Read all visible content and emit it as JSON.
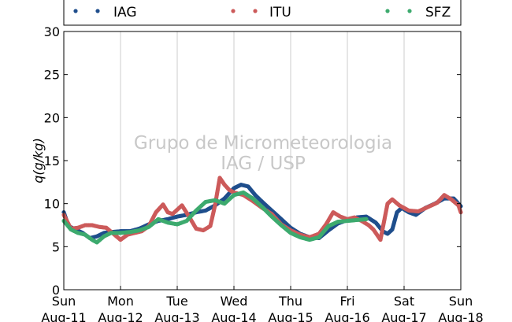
{
  "chart_data": {
    "type": "scatter",
    "ylabel": "q(g/kg)",
    "ylim": [
      0,
      30
    ],
    "yticks": [
      0,
      5,
      10,
      15,
      20,
      25,
      30
    ],
    "xlim": [
      "2013-08-11T00:00",
      "2013-08-18T00:00"
    ],
    "xticks": [
      {
        "day": "Sun",
        "date": "Aug-11"
      },
      {
        "day": "Mon",
        "date": "Aug-12"
      },
      {
        "day": "Tue",
        "date": "Aug-13"
      },
      {
        "day": "Wed",
        "date": "Aug-14"
      },
      {
        "day": "Thu",
        "date": "Aug-15"
      },
      {
        "day": "Fri",
        "date": "Aug-16"
      },
      {
        "day": "Sat",
        "date": "Aug-17"
      },
      {
        "day": "Sun",
        "date": "Aug-18"
      }
    ],
    "grid": "vertical",
    "legend_position": "top",
    "watermark": {
      "line1": "Grupo de Micrometeorologia",
      "line2": "IAG / USP"
    },
    "series": [
      {
        "name": "IAG",
        "color": "#1f4e8c",
        "points": [
          [
            "2013-08-11T00:00",
            9.0
          ],
          [
            "2013-08-11T02:00",
            7.4
          ],
          [
            "2013-08-11T05:00",
            7.0
          ],
          [
            "2013-08-11T08:00",
            6.6
          ],
          [
            "2013-08-11T11:00",
            6.0
          ],
          [
            "2013-08-11T14:00",
            6.2
          ],
          [
            "2013-08-11T17:00",
            6.6
          ],
          [
            "2013-08-11T20:00",
            6.7
          ],
          [
            "2013-08-12T00:00",
            6.8
          ],
          [
            "2013-08-12T04:00",
            6.8
          ],
          [
            "2013-08-12T08:00",
            7.1
          ],
          [
            "2013-08-12T12:00",
            7.6
          ],
          [
            "2013-08-12T16:00",
            8.0
          ],
          [
            "2013-08-12T20:00",
            8.2
          ],
          [
            "2013-08-13T00:00",
            8.5
          ],
          [
            "2013-08-13T04:00",
            8.7
          ],
          [
            "2013-08-13T08:00",
            9.0
          ],
          [
            "2013-08-13T12:00",
            9.2
          ],
          [
            "2013-08-13T16:00",
            9.8
          ],
          [
            "2013-08-13T20:00",
            10.6
          ],
          [
            "2013-08-14T00:00",
            11.8
          ],
          [
            "2013-08-14T03:00",
            12.2
          ],
          [
            "2013-08-14T06:00",
            12.0
          ],
          [
            "2013-08-14T09:00",
            11.0
          ],
          [
            "2013-08-14T12:00",
            10.2
          ],
          [
            "2013-08-14T16:00",
            9.2
          ],
          [
            "2013-08-14T20:00",
            8.2
          ],
          [
            "2013-08-15T00:00",
            7.2
          ],
          [
            "2013-08-15T04:00",
            6.5
          ],
          [
            "2013-08-15T08:00",
            6.1
          ],
          [
            "2013-08-15T12:00",
            6.0
          ],
          [
            "2013-08-15T16:00",
            6.9
          ],
          [
            "2013-08-15T20:00",
            7.7
          ],
          [
            "2013-08-16T00:00",
            8.1
          ],
          [
            "2013-08-16T04:00",
            8.4
          ],
          [
            "2013-08-16T08:00",
            8.5
          ],
          [
            "2013-08-16T12:00",
            7.8
          ],
          [
            "2013-08-16T15:00",
            6.8
          ],
          [
            "2013-08-16T17:00",
            6.5
          ],
          [
            "2013-08-16T19:00",
            7.0
          ],
          [
            "2013-08-16T21:00",
            9.0
          ],
          [
            "2013-08-16T23:00",
            9.5
          ],
          [
            "2013-08-17T02:00",
            9.0
          ],
          [
            "2013-08-17T05:00",
            8.7
          ],
          [
            "2013-08-17T09:00",
            9.5
          ],
          [
            "2013-08-17T13:00",
            10.0
          ],
          [
            "2013-08-17T17:00",
            10.6
          ],
          [
            "2013-08-17T21:00",
            10.6
          ],
          [
            "2013-08-18T00:00",
            9.7
          ]
        ]
      },
      {
        "name": "ITU",
        "color": "#cc5a5a",
        "points": [
          [
            "2013-08-11T00:00",
            8.7
          ],
          [
            "2013-08-11T03:00",
            7.1
          ],
          [
            "2013-08-11T06:00",
            7.2
          ],
          [
            "2013-08-11T09:00",
            7.5
          ],
          [
            "2013-08-11T12:00",
            7.5
          ],
          [
            "2013-08-11T15:00",
            7.3
          ],
          [
            "2013-08-11T18:00",
            7.2
          ],
          [
            "2013-08-11T21:00",
            6.5
          ],
          [
            "2013-08-12T00:00",
            5.8
          ],
          [
            "2013-08-12T03:00",
            6.4
          ],
          [
            "2013-08-12T06:00",
            6.6
          ],
          [
            "2013-08-12T09:00",
            6.8
          ],
          [
            "2013-08-12T12:00",
            7.4
          ],
          [
            "2013-08-12T15:00",
            9.0
          ],
          [
            "2013-08-12T18:00",
            9.9
          ],
          [
            "2013-08-12T20:00",
            9.0
          ],
          [
            "2013-08-12T22:00",
            8.8
          ],
          [
            "2013-08-13T02:00",
            9.8
          ],
          [
            "2013-08-13T05:00",
            8.5
          ],
          [
            "2013-08-13T08:00",
            7.1
          ],
          [
            "2013-08-13T11:00",
            6.9
          ],
          [
            "2013-08-13T14:00",
            7.4
          ],
          [
            "2013-08-13T16:00",
            9.8
          ],
          [
            "2013-08-13T18:00",
            13.0
          ],
          [
            "2013-08-13T20:00",
            12.2
          ],
          [
            "2013-08-13T22:00",
            11.6
          ],
          [
            "2013-08-14T00:00",
            11.3
          ],
          [
            "2013-08-14T04:00",
            11.0
          ],
          [
            "2013-08-14T08:00",
            10.3
          ],
          [
            "2013-08-14T12:00",
            9.5
          ],
          [
            "2013-08-14T16:00",
            8.8
          ],
          [
            "2013-08-14T20:00",
            7.6
          ],
          [
            "2013-08-15T00:00",
            6.9
          ],
          [
            "2013-08-15T04:00",
            6.4
          ],
          [
            "2013-08-15T08:00",
            6.1
          ],
          [
            "2013-08-15T12:00",
            6.5
          ],
          [
            "2013-08-15T15:00",
            7.6
          ],
          [
            "2013-08-15T18:00",
            9.0
          ],
          [
            "2013-08-15T21:00",
            8.5
          ],
          [
            "2013-08-16T00:00",
            8.2
          ],
          [
            "2013-08-16T03:00",
            8.4
          ],
          [
            "2013-08-16T06:00",
            8.0
          ],
          [
            "2013-08-16T09:00",
            7.5
          ],
          [
            "2013-08-16T11:00",
            7.0
          ],
          [
            "2013-08-16T13:00",
            6.2
          ],
          [
            "2013-08-16T14:00",
            5.8
          ],
          [
            "2013-08-16T15:00",
            7.2
          ],
          [
            "2013-08-16T17:00",
            10.0
          ],
          [
            "2013-08-16T19:00",
            10.5
          ],
          [
            "2013-08-16T22:00",
            9.8
          ],
          [
            "2013-08-17T02:00",
            9.2
          ],
          [
            "2013-08-17T06:00",
            9.1
          ],
          [
            "2013-08-17T10:00",
            9.6
          ],
          [
            "2013-08-17T14:00",
            10.1
          ],
          [
            "2013-08-17T17:00",
            11.0
          ],
          [
            "2013-08-17T20:00",
            10.5
          ],
          [
            "2013-08-17T23:00",
            9.8
          ],
          [
            "2013-08-18T00:00",
            9.0
          ]
        ]
      },
      {
        "name": "SFZ",
        "color": "#3daa6e",
        "points": [
          [
            "2013-08-11T00:00",
            8.0
          ],
          [
            "2013-08-11T03:00",
            7.0
          ],
          [
            "2013-08-11T06:00",
            6.6
          ],
          [
            "2013-08-11T09:00",
            6.4
          ],
          [
            "2013-08-11T12:00",
            5.8
          ],
          [
            "2013-08-11T14:00",
            5.5
          ],
          [
            "2013-08-11T17:00",
            6.2
          ],
          [
            "2013-08-11T20:00",
            6.6
          ],
          [
            "2013-08-12T00:00",
            6.6
          ],
          [
            "2013-08-12T04:00",
            6.7
          ],
          [
            "2013-08-12T08:00",
            6.9
          ],
          [
            "2013-08-12T12:00",
            7.3
          ],
          [
            "2013-08-12T16:00",
            8.2
          ],
          [
            "2013-08-12T20:00",
            7.8
          ],
          [
            "2013-08-13T00:00",
            7.6
          ],
          [
            "2013-08-13T04:00",
            8.0
          ],
          [
            "2013-08-13T08:00",
            9.2
          ],
          [
            "2013-08-13T12:00",
            10.2
          ],
          [
            "2013-08-13T16:00",
            10.4
          ],
          [
            "2013-08-13T20:00",
            10.0
          ],
          [
            "2013-08-14T00:00",
            11.0
          ],
          [
            "2013-08-14T04:00",
            11.3
          ],
          [
            "2013-08-14T08:00",
            10.6
          ],
          [
            "2013-08-14T12:00",
            9.6
          ],
          [
            "2013-08-14T16:00",
            8.5
          ],
          [
            "2013-08-14T20:00",
            7.5
          ],
          [
            "2013-08-15T00:00",
            6.6
          ],
          [
            "2013-08-15T04:00",
            6.1
          ],
          [
            "2013-08-15T08:00",
            5.8
          ],
          [
            "2013-08-15T12:00",
            6.1
          ],
          [
            "2013-08-15T16:00",
            7.4
          ],
          [
            "2013-08-15T20:00",
            7.9
          ],
          [
            "2013-08-16T00:00",
            8.0
          ],
          [
            "2013-08-16T04:00",
            8.1
          ],
          [
            "2013-08-16T08:00",
            8.2
          ]
        ]
      }
    ]
  }
}
